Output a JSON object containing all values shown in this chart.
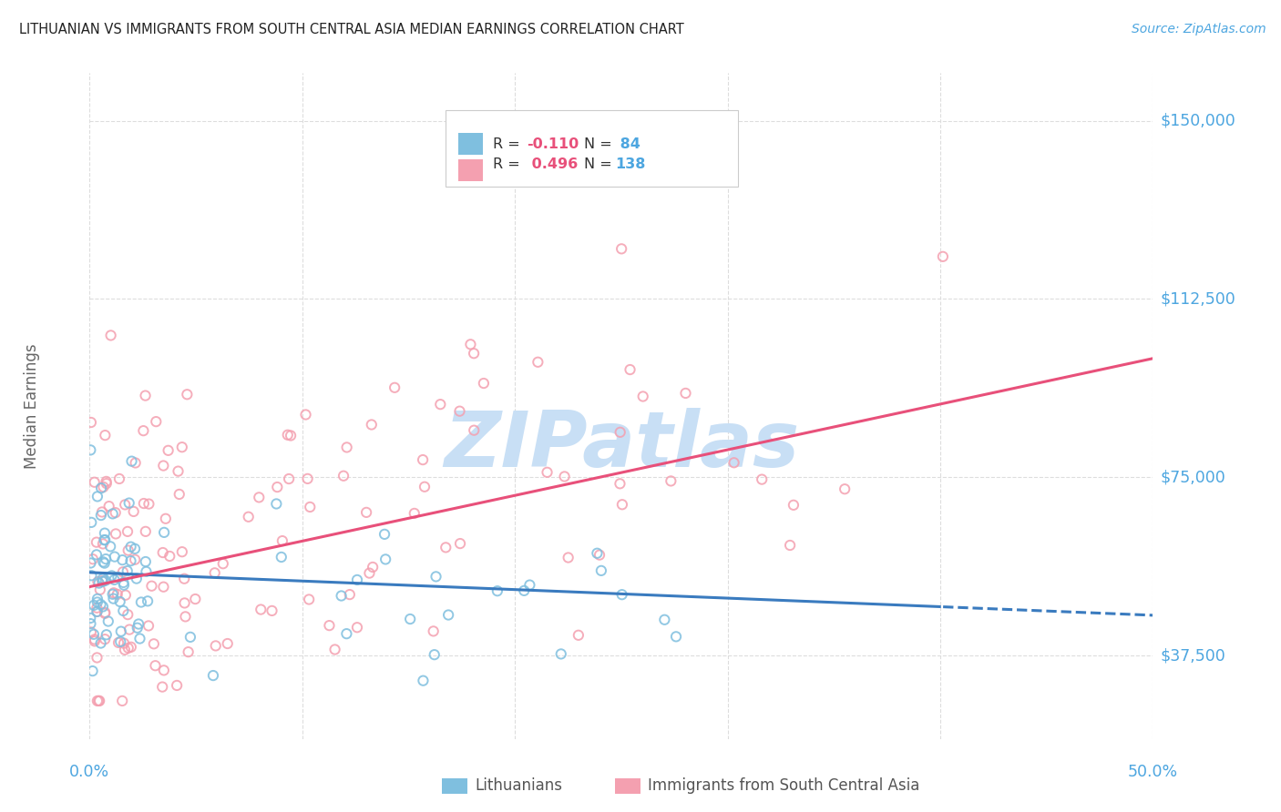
{
  "title": "LITHUANIAN VS IMMIGRANTS FROM SOUTH CENTRAL ASIA MEDIAN EARNINGS CORRELATION CHART",
  "source": "Source: ZipAtlas.com",
  "ylabel": "Median Earnings",
  "xlim": [
    0.0,
    0.5
  ],
  "ylim": [
    20000,
    160000
  ],
  "yticks": [
    37500,
    75000,
    112500,
    150000
  ],
  "ytick_labels": [
    "$37,500",
    "$75,000",
    "$112,500",
    "$150,000"
  ],
  "background_color": "#ffffff",
  "grid_color": "#dddddd",
  "watermark_text": "ZIPatlas",
  "watermark_color": "#c8dff5",
  "scatter1_color": "#7fbfdf",
  "scatter2_color": "#f4a0b0",
  "line1_color": "#3a7bbf",
  "line2_color": "#e8507a",
  "title_color": "#222222",
  "axis_label_color": "#666666",
  "ytick_color": "#4da6e0",
  "xtick_color": "#4da6e0",
  "source_color": "#4da6e0",
  "R1": -0.11,
  "N1": 84,
  "R2": 0.496,
  "N2": 138,
  "legend_r_color": "#e8507a",
  "legend_n_color": "#4da6e0",
  "line1_y0": 55000,
  "line1_y1": 46000,
  "line2_y0": 52000,
  "line2_y1": 100000,
  "line1_solid_end": 0.4
}
